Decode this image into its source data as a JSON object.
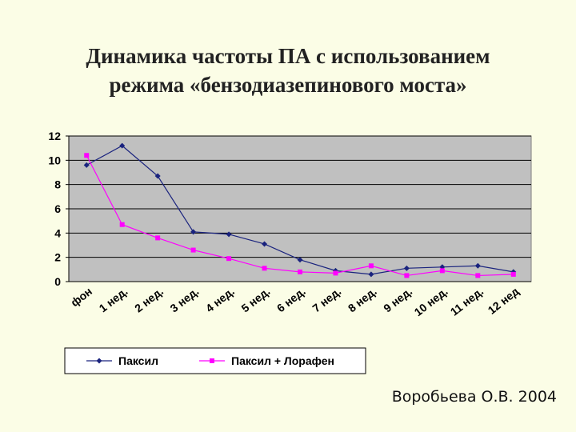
{
  "slide": {
    "title_line1": "Динамика частоты ПА с использованием",
    "title_line2": "режима «бензодиазепинового моста»",
    "author": "Воробьева О.В. 2004"
  },
  "chart_data": {
    "type": "line",
    "categories": [
      "фон",
      "1 нед.",
      "2 нед.",
      "3 нед.",
      "4 нед.",
      "5 нед.",
      "6 нед.",
      "7 нед.",
      "8 нед.",
      "9 нед.",
      "10 нед.",
      "11 нед.",
      "12 нед"
    ],
    "series": [
      {
        "name": "Паксил",
        "color": "#1a237e",
        "marker": "diamond",
        "values": [
          9.6,
          11.2,
          8.7,
          4.1,
          3.9,
          3.1,
          1.8,
          0.9,
          0.6,
          1.1,
          1.2,
          1.3,
          0.8
        ]
      },
      {
        "name": "Паксил + Лорафен",
        "color": "#ff00ff",
        "marker": "square",
        "values": [
          10.4,
          4.7,
          3.6,
          2.6,
          1.9,
          1.1,
          0.8,
          0.7,
          1.3,
          0.5,
          0.9,
          0.5,
          0.6
        ]
      }
    ],
    "yticks": [
      0,
      2,
      4,
      6,
      8,
      10,
      12
    ],
    "ylim": [
      0,
      12
    ],
    "plot_background": "#c0c0c0",
    "grid": true,
    "legend_position": "bottom",
    "title": "",
    "xlabel": "",
    "ylabel": ""
  }
}
